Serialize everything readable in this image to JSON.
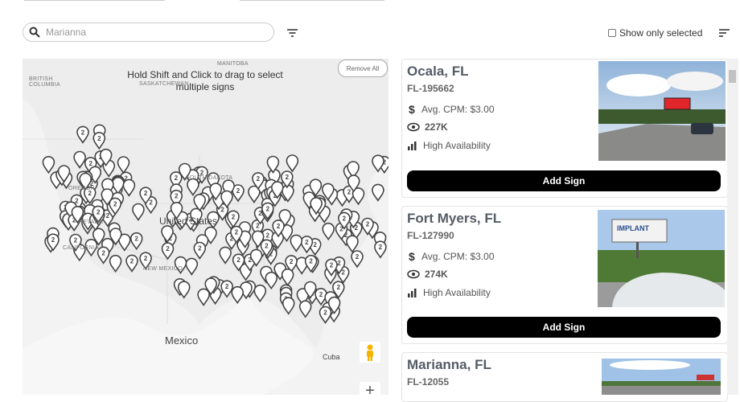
{
  "search": {
    "placeholder": "Marianna"
  },
  "filter": {
    "show_only_selected": "Show only selected"
  },
  "map": {
    "hint": "Hold Shift and Click to drag to select multiple signs",
    "remove_all": "Remove All",
    "cluster_label": "2",
    "zoom_in": "+",
    "labels": [
      "BRITISH COLUMBIA",
      "SASKATCHEWAN",
      "MANITOBA",
      "OREGON",
      "SOUTH DAKOTA",
      "NEVADA",
      "CALIFORNIA",
      "United States",
      "NEW MEXICO",
      "Mexico",
      "Cuba"
    ]
  },
  "add_button": "Add Sign",
  "listings": [
    {
      "city": "Ocala, FL",
      "code": "FL-195662",
      "cpm": "Avg. CPM: $3.00",
      "views": "227K",
      "availability": "High Availability"
    },
    {
      "city": "Fort Myers, FL",
      "code": "FL-127990",
      "cpm": "Avg. CPM: $3.00",
      "views": "274K",
      "availability": "High Availability"
    },
    {
      "city": "Marianna, FL",
      "code": "FL-12055"
    }
  ]
}
